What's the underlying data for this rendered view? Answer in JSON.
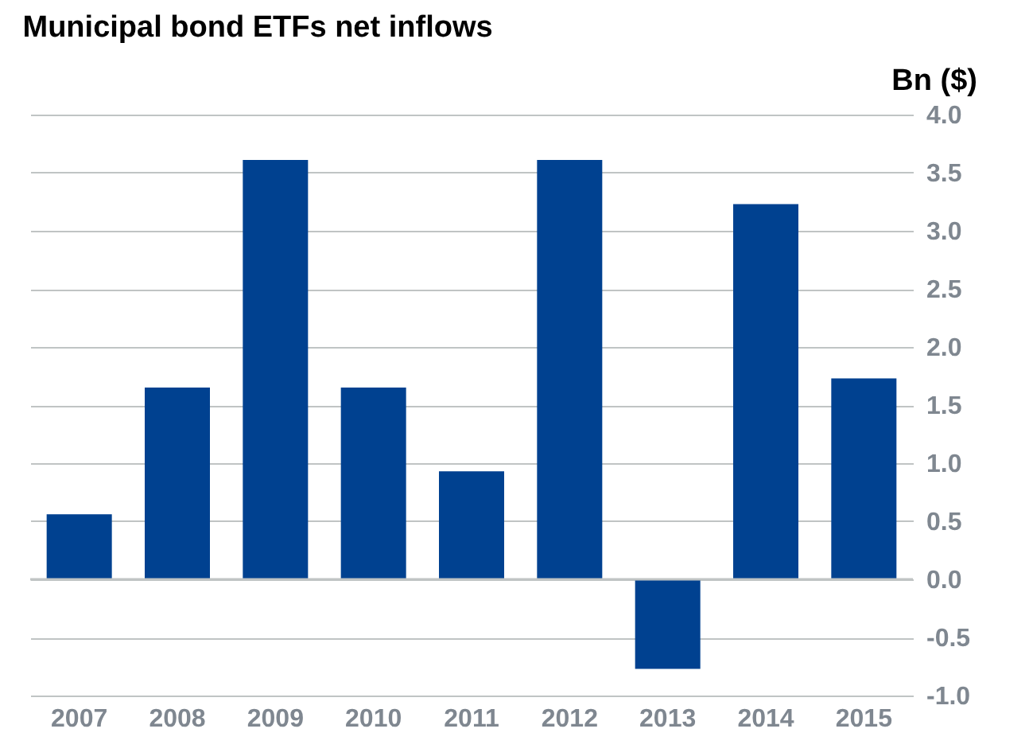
{
  "chart_data": {
    "type": "bar",
    "title": "Municipal bond ETFs net inflows",
    "ylabel": "Bn ($)",
    "categories": [
      "2007",
      "2008",
      "2009",
      "2010",
      "2011",
      "2012",
      "2013",
      "2014",
      "2015"
    ],
    "values": [
      0.56,
      1.65,
      3.61,
      1.65,
      0.93,
      3.61,
      -0.77,
      3.23,
      1.73
    ],
    "color": "#004190",
    "ylim": [
      -1.0,
      4.0
    ],
    "yticks": [
      {
        "value": -1.0,
        "label": "-1.0"
      },
      {
        "value": -0.5,
        "label": "-0.5"
      },
      {
        "value": 0.0,
        "label": "0.0"
      },
      {
        "value": 0.5,
        "label": "0.5"
      },
      {
        "value": 1.0,
        "label": "1.0"
      },
      {
        "value": 1.5,
        "label": "1.5"
      },
      {
        "value": 2.0,
        "label": "2.0"
      },
      {
        "value": 2.5,
        "label": "2.5"
      },
      {
        "value": 3.0,
        "label": "3.0"
      },
      {
        "value": 3.5,
        "label": "3.5"
      },
      {
        "value": 4.0,
        "label": "4.0"
      }
    ],
    "grid": "y"
  }
}
